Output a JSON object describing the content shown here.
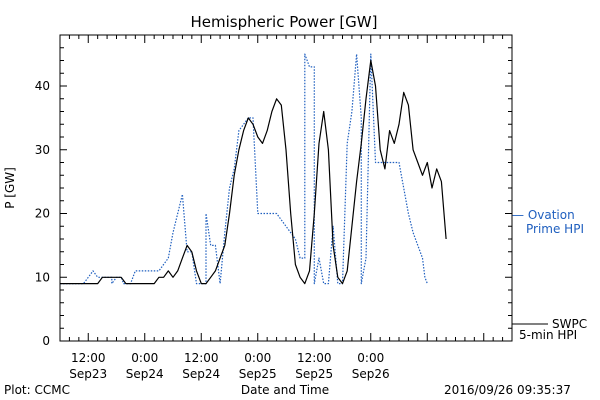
{
  "chart_data": {
    "type": "line",
    "title": "Hemispheric Power [GW]",
    "ylabel": "P [GW]",
    "xlabel": "Date and Time",
    "ylim": [
      0,
      48
    ],
    "yticks": [
      0,
      10,
      20,
      30,
      40
    ],
    "xlim_hours": [
      6,
      102
    ],
    "xticks": [
      {
        "hour": 12,
        "time": "12:00",
        "date": "Sep23"
      },
      {
        "hour": 24,
        "time": "0:00",
        "date": "Sep24"
      },
      {
        "hour": 36,
        "time": "12:00",
        "date": "Sep24"
      },
      {
        "hour": 48,
        "time": "0:00",
        "date": "Sep25"
      },
      {
        "hour": 60,
        "time": "12:00",
        "date": "Sep25"
      },
      {
        "hour": 72,
        "time": "0:00",
        "date": "Sep26"
      }
    ],
    "grid": false,
    "series": [
      {
        "name": "Ovation Prime HPI",
        "label_lines": [
          "Ovation",
          "Prime HPI"
        ],
        "color": "#1f5fbf",
        "style": "dotted",
        "points": [
          [
            6,
            9
          ],
          [
            11,
            9
          ],
          [
            12,
            10
          ],
          [
            13,
            11
          ],
          [
            14,
            10
          ],
          [
            17,
            10
          ],
          [
            17,
            9
          ],
          [
            18,
            10
          ],
          [
            19,
            10
          ],
          [
            19.5,
            9
          ],
          [
            21,
            9
          ],
          [
            22,
            11
          ],
          [
            27,
            11
          ],
          [
            29,
            13
          ],
          [
            30,
            17
          ],
          [
            32,
            23
          ],
          [
            33,
            14
          ],
          [
            34,
            14
          ],
          [
            35,
            9
          ],
          [
            37,
            9
          ],
          [
            37,
            20
          ],
          [
            38,
            15
          ],
          [
            39,
            15
          ],
          [
            40,
            9
          ],
          [
            41,
            17
          ],
          [
            42,
            24
          ],
          [
            43,
            27
          ],
          [
            44,
            33
          ],
          [
            45,
            34
          ],
          [
            46,
            35
          ],
          [
            47,
            35
          ],
          [
            48,
            20
          ],
          [
            52,
            20
          ],
          [
            54,
            18
          ],
          [
            56,
            16
          ],
          [
            57,
            13
          ],
          [
            58,
            13
          ],
          [
            58,
            45
          ],
          [
            59,
            43
          ],
          [
            60,
            43
          ],
          [
            60,
            9
          ],
          [
            61,
            13
          ],
          [
            62,
            9
          ],
          [
            63,
            9
          ],
          [
            64,
            18
          ],
          [
            65,
            9
          ],
          [
            66,
            9
          ],
          [
            67,
            31
          ],
          [
            68,
            36
          ],
          [
            69,
            45
          ],
          [
            70,
            35
          ],
          [
            70,
            9
          ],
          [
            71,
            13
          ],
          [
            72,
            45
          ],
          [
            73,
            28
          ],
          [
            78,
            28
          ],
          [
            80,
            20
          ],
          [
            81,
            17
          ],
          [
            82,
            15
          ],
          [
            83,
            13
          ],
          [
            83.5,
            10
          ],
          [
            84,
            9
          ]
        ]
      },
      {
        "name": "SWPC 5-min HPI",
        "label_lines": [
          "SWPC",
          "5-min HPI"
        ],
        "color": "#000000",
        "style": "solid",
        "points": [
          [
            6,
            9
          ],
          [
            14,
            9
          ],
          [
            15,
            10
          ],
          [
            19,
            10
          ],
          [
            20,
            9
          ],
          [
            26,
            9
          ],
          [
            27,
            10
          ],
          [
            28,
            10
          ],
          [
            29,
            11
          ],
          [
            30,
            10
          ],
          [
            31,
            11
          ],
          [
            32,
            13
          ],
          [
            33,
            15
          ],
          [
            34,
            14
          ],
          [
            35,
            11
          ],
          [
            36,
            9
          ],
          [
            37,
            9
          ],
          [
            38,
            10
          ],
          [
            39,
            11
          ],
          [
            40,
            13
          ],
          [
            41,
            15
          ],
          [
            42,
            20
          ],
          [
            43,
            26
          ],
          [
            44,
            30
          ],
          [
            45,
            33
          ],
          [
            46,
            35
          ],
          [
            47,
            34
          ],
          [
            48,
            32
          ],
          [
            49,
            31
          ],
          [
            50,
            33
          ],
          [
            51,
            36
          ],
          [
            52,
            38
          ],
          [
            53,
            37
          ],
          [
            54,
            30
          ],
          [
            55,
            20
          ],
          [
            56,
            12
          ],
          [
            57,
            10
          ],
          [
            58,
            9
          ],
          [
            59,
            11
          ],
          [
            60,
            20
          ],
          [
            61,
            31
          ],
          [
            62,
            36
          ],
          [
            63,
            30
          ],
          [
            64,
            15
          ],
          [
            65,
            10
          ],
          [
            66,
            9
          ],
          [
            67,
            11
          ],
          [
            68,
            18
          ],
          [
            69,
            25
          ],
          [
            70,
            31
          ],
          [
            71,
            38
          ],
          [
            72,
            44
          ],
          [
            73,
            40
          ],
          [
            74,
            30
          ],
          [
            75,
            27
          ],
          [
            76,
            33
          ],
          [
            77,
            31
          ],
          [
            78,
            34
          ],
          [
            79,
            39
          ],
          [
            80,
            37
          ],
          [
            81,
            30
          ],
          [
            82,
            28
          ],
          [
            83,
            26
          ],
          [
            84,
            28
          ],
          [
            85,
            24
          ],
          [
            86,
            27
          ],
          [
            87,
            25
          ],
          [
            88,
            16
          ]
        ]
      }
    ]
  },
  "footer": {
    "left": "Plot: CCMC",
    "timestamp": "2016/09/26 09:35:37"
  },
  "legend": {
    "ovation_prefix": "— "
  }
}
